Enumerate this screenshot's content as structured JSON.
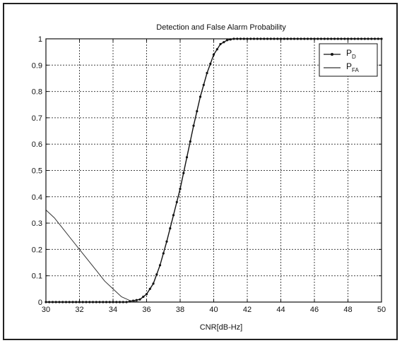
{
  "chart_data": {
    "type": "line",
    "title": "Detection and False Alarm Probability",
    "xlabel": "CNR[dB-Hz]",
    "ylabel": "",
    "xlim": [
      30,
      50
    ],
    "ylim": [
      0,
      1
    ],
    "grid": true,
    "legend_position": "top-right",
    "x_ticks": [
      "30",
      "32",
      "34",
      "36",
      "38",
      "40",
      "42",
      "44",
      "46",
      "48",
      "50"
    ],
    "y_ticks": [
      "0",
      "0.1",
      "0.2",
      "0.3",
      "0.4",
      "0.5",
      "0.6",
      "0.7",
      "0.8",
      "0.9",
      "1"
    ],
    "series": [
      {
        "name": "P_D",
        "legend_main": "P",
        "legend_sub": "D",
        "marker": "dot",
        "color": "#111111",
        "x": [
          30,
          34.8,
          35.2,
          35.6,
          36.0,
          36.4,
          36.8,
          37.2,
          37.6,
          38.0,
          38.4,
          38.8,
          39.2,
          39.6,
          40.0,
          40.4,
          40.8,
          41.2,
          41.6,
          42.0,
          44.0,
          46.0,
          48.0,
          50.0
        ],
        "y": [
          0,
          0.0,
          0.005,
          0.01,
          0.03,
          0.07,
          0.14,
          0.23,
          0.33,
          0.43,
          0.55,
          0.67,
          0.78,
          0.87,
          0.94,
          0.98,
          0.995,
          1.0,
          1.0,
          1.0,
          1.0,
          1.0,
          1.0,
          1.0
        ]
      },
      {
        "name": "P_FA",
        "legend_main": "P",
        "legend_sub": "FA",
        "marker": "none",
        "color": "#333333",
        "x": [
          30.0,
          30.5,
          31.0,
          31.5,
          32.0,
          32.5,
          33.0,
          33.5,
          34.0,
          34.5,
          35.0,
          35.3,
          35.6,
          36.0,
          50.0
        ],
        "y": [
          0.35,
          0.32,
          0.28,
          0.24,
          0.2,
          0.16,
          0.12,
          0.08,
          0.05,
          0.02,
          0.006,
          0.002,
          0.0,
          0.0,
          0.0
        ]
      }
    ]
  }
}
